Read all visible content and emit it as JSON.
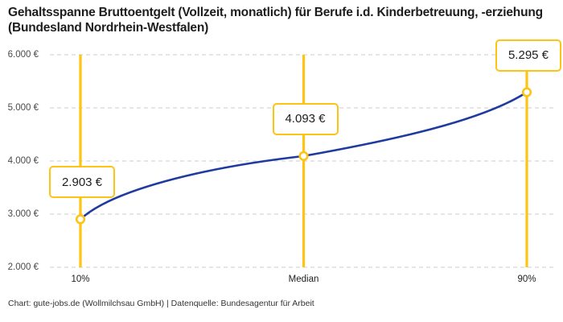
{
  "header": {
    "title": "Gehaltsspanne Bruttoentgelt (Vollzeit, monatlich) für Berufe i.d. Kinderbetreuung, -erziehung (Bundesland Nordrhein-Westfalen)"
  },
  "footer": {
    "credit": "Chart: gute-jobs.de (Wollmilchsau GmbH) | Datenquelle: Bundesagentur für Arbeit"
  },
  "chart_data": {
    "type": "line",
    "title": "Gehaltsspanne Bruttoentgelt (Vollzeit, monatlich) für Berufe i.d. Kinderbetreuung, -erziehung (Bundesland Nordrhein-Westfalen)",
    "categories": [
      "10%",
      "Median",
      "90%"
    ],
    "values": [
      2903,
      4093,
      5295
    ],
    "point_labels": [
      "2.903 €",
      "4.093 €",
      "5.295 €"
    ],
    "xlabel": "",
    "ylabel": "",
    "ylim": [
      2000,
      6000
    ],
    "yticks": [
      2000,
      3000,
      4000,
      5000,
      6000
    ],
    "ytick_labels": [
      "2.000 €",
      "3.000 €",
      "4.000 €",
      "5.000 €",
      "6.000 €"
    ],
    "grid": "horizontal-dashed",
    "legend": "none",
    "marker_style": "open-circle",
    "colors": {
      "accent": "#FDC413",
      "line": "#1F3BA0",
      "grid": "#CCCCCC",
      "text": "#1D1D1D",
      "muted_text": "#4A4A4A",
      "background": "#FFFFFF"
    }
  }
}
